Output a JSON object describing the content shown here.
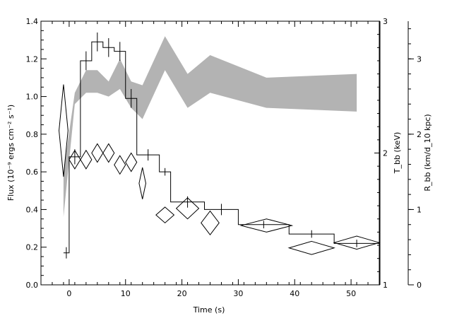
{
  "chart_data": {
    "type": "line",
    "xlabel": "Time (s)",
    "ylabel_left": "Flux (10⁻⁹ ergs cm⁻² s⁻¹)",
    "ylabel_right_inner": "T_bb (keV)",
    "ylabel_right_outer": "R_bb (km/d_10 kpc)",
    "xlim": [
      -5,
      55
    ],
    "ylim_flux": [
      0,
      1.4
    ],
    "ylim_temp": [
      1,
      3
    ],
    "ylim_radius": [
      0,
      3.5
    ],
    "x_ticks": [
      "0",
      "10",
      "20",
      "30",
      "40",
      "50"
    ],
    "x_tick_values": [
      0,
      10,
      20,
      30,
      40,
      50
    ],
    "y_ticks_flux": [
      "0.0",
      "0.2",
      "0.4",
      "0.6",
      "0.8",
      "1.0",
      "1.2",
      "1.4"
    ],
    "y_tick_values_flux": [
      0,
      0.2,
      0.4,
      0.6,
      0.8,
      1.0,
      1.2,
      1.4
    ],
    "y_ticks_temp": [
      "1",
      "2",
      "3"
    ],
    "y_tick_values_temp": [
      1,
      2,
      3
    ],
    "y_ticks_radius": [
      "0",
      "1",
      "2",
      "3"
    ],
    "y_tick_values_radius": [
      0,
      1,
      2,
      3
    ],
    "flux_histogram": [
      {
        "x0": -1,
        "x1": 0,
        "y": 0.17,
        "err": 0.03
      },
      {
        "x0": 0,
        "x1": 2,
        "y": 0.68,
        "err": 0.04
      },
      {
        "x0": 2,
        "x1": 4,
        "y": 1.19,
        "err": 0.05
      },
      {
        "x0": 4,
        "x1": 6,
        "y": 1.29,
        "err": 0.05
      },
      {
        "x0": 6,
        "x1": 8,
        "y": 1.26,
        "err": 0.05
      },
      {
        "x0": 8,
        "x1": 10,
        "y": 1.24,
        "err": 0.05
      },
      {
        "x0": 10,
        "x1": 12,
        "y": 0.99,
        "err": 0.05
      },
      {
        "x0": 12,
        "x1": 16,
        "y": 0.69,
        "err": 0.03
      },
      {
        "x0": 16,
        "x1": 18,
        "y": 0.6,
        "err": 0.02
      },
      {
        "x0": 18,
        "x1": 24,
        "y": 0.44,
        "err": 0.03
      },
      {
        "x0": 24,
        "x1": 30,
        "y": 0.4,
        "err": 0.03
      },
      {
        "x0": 30,
        "x1": 39,
        "y": 0.32,
        "err": 0.02
      },
      {
        "x0": 39,
        "x1": 47,
        "y": 0.27,
        "err": 0.02
      },
      {
        "x0": 47,
        "x1": 55,
        "y": 0.22,
        "err": 0.02
      }
    ],
    "temperature_points": [
      {
        "x": -1,
        "y": 2.17,
        "xerr": 0.8,
        "yerr": 0.35
      },
      {
        "x": 1,
        "y": 1.95,
        "xerr": 1.0,
        "yerr": 0.07
      },
      {
        "x": 3,
        "y": 1.95,
        "xerr": 1.0,
        "yerr": 0.07
      },
      {
        "x": 5,
        "y": 2.0,
        "xerr": 1.0,
        "yerr": 0.07
      },
      {
        "x": 7,
        "y": 2.0,
        "xerr": 1.0,
        "yerr": 0.07
      },
      {
        "x": 9,
        "y": 1.91,
        "xerr": 1.0,
        "yerr": 0.07
      },
      {
        "x": 11,
        "y": 1.93,
        "xerr": 1.0,
        "yerr": 0.07
      },
      {
        "x": 13,
        "y": 1.77,
        "xerr": 0.6,
        "yerr": 0.12
      },
      {
        "x": 17,
        "y": 1.53,
        "xerr": 1.6,
        "yerr": 0.06
      },
      {
        "x": 21,
        "y": 1.58,
        "xerr": 2.0,
        "yerr": 0.08
      },
      {
        "x": 25,
        "y": 1.47,
        "xerr": 1.6,
        "yerr": 0.09
      },
      {
        "x": 35,
        "y": 1.45,
        "xerr": 4.5,
        "yerr": 0.05
      },
      {
        "x": 43,
        "y": 1.28,
        "xerr": 4.0,
        "yerr": 0.05
      },
      {
        "x": 51,
        "y": 1.32,
        "xerr": 4.0,
        "yerr": 0.05
      }
    ],
    "radius_band": {
      "x": [
        -1,
        1,
        3,
        5,
        7,
        9,
        11,
        13,
        17,
        21,
        25,
        35,
        51
      ],
      "low": [
        0.9,
        2.4,
        2.55,
        2.55,
        2.5,
        2.6,
        2.35,
        2.2,
        2.85,
        2.35,
        2.55,
        2.35,
        2.3
      ],
      "high": [
        1.5,
        2.55,
        2.85,
        2.85,
        2.7,
        3.0,
        2.7,
        2.65,
        3.3,
        2.8,
        3.05,
        2.75,
        2.8
      ]
    },
    "colors": {
      "band": "#b3b3b3",
      "line": "#000000",
      "background": "#ffffff"
    }
  }
}
